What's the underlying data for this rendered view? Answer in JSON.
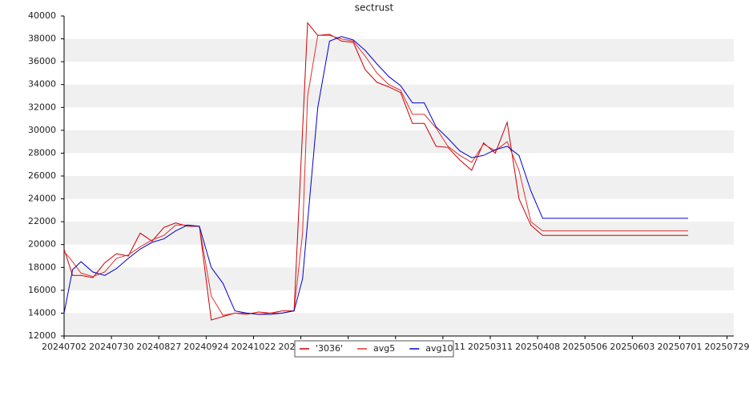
{
  "chart_data": {
    "type": "line",
    "title": "sectrust",
    "x": [
      "20240702",
      "20240707",
      "20240712",
      "20240719",
      "20240726",
      "20240802",
      "20240809",
      "20240816",
      "20240823",
      "20240830",
      "20240906",
      "20240913",
      "20240920",
      "20240927",
      "20241004",
      "20241011",
      "20241018",
      "20241025",
      "20241101",
      "20241108",
      "20241115",
      "20241120",
      "20241123",
      "20241129",
      "20241206",
      "20241213",
      "20241220",
      "20241227",
      "20250103",
      "20250110",
      "20250117",
      "20250124",
      "20250131",
      "20250207",
      "20250214",
      "20250221",
      "20250228",
      "20250307",
      "20250314",
      "20250321",
      "20250328",
      "20250404",
      "20250411",
      "20250706"
    ],
    "series": [
      {
        "name": "'3036'",
        "color": "#cc0000",
        "values": [
          19600,
          17300,
          17300,
          17100,
          18400,
          19200,
          19000,
          21000,
          20300,
          21500,
          21900,
          21600,
          21600,
          13400,
          13700,
          14000,
          13900,
          14100,
          14000,
          14200,
          14200,
          30000,
          39400,
          38300,
          38400,
          37800,
          37700,
          35300,
          34200,
          33800,
          33300,
          30600,
          30600,
          28600,
          28500,
          27400,
          26500,
          28900,
          28000,
          30700,
          24000,
          21700,
          20800,
          20800
        ]
      },
      {
        "name": "avg5",
        "color": "#e03030",
        "values": [
          19400,
          18500,
          17500,
          17200,
          17600,
          18800,
          19100,
          19800,
          20400,
          20800,
          21700,
          21700,
          21600,
          15500,
          13800,
          14000,
          14000,
          13900,
          14000,
          14000,
          14200,
          21000,
          33000,
          38300,
          38300,
          38000,
          37800,
          36500,
          35000,
          34000,
          33500,
          31400,
          31400,
          30200,
          28600,
          27800,
          27200,
          28800,
          28200,
          29000,
          26500,
          22000,
          21200,
          21200
        ]
      },
      {
        "name": "avg10",
        "color": "#0000cc",
        "values": [
          14000,
          17800,
          18500,
          17600,
          17300,
          17900,
          18800,
          19600,
          20200,
          20500,
          21200,
          21700,
          21600,
          18000,
          16600,
          14200,
          14000,
          13900,
          13900,
          14000,
          14200,
          17000,
          22000,
          32000,
          37800,
          38200,
          37900,
          37000,
          35800,
          34700,
          33900,
          32400,
          32400,
          30300,
          29300,
          28200,
          27600,
          27800,
          28300,
          28600,
          27800,
          24700,
          22300,
          22300
        ]
      }
    ],
    "xlim": [
      "20240702",
      "20250802"
    ],
    "xticks": [
      "20240702",
      "20240730",
      "20240827",
      "20240924",
      "20241022",
      "20241119",
      "20241217",
      "20250114",
      "20250211",
      "20250311",
      "20250408",
      "20250506",
      "20250603",
      "20250701",
      "20250729"
    ],
    "ylim": [
      12000,
      40000
    ],
    "yticks": [
      12000,
      14000,
      16000,
      18000,
      20000,
      22000,
      24000,
      26000,
      28000,
      30000,
      32000,
      34000,
      36000,
      38000,
      40000
    ],
    "grid": true
  }
}
